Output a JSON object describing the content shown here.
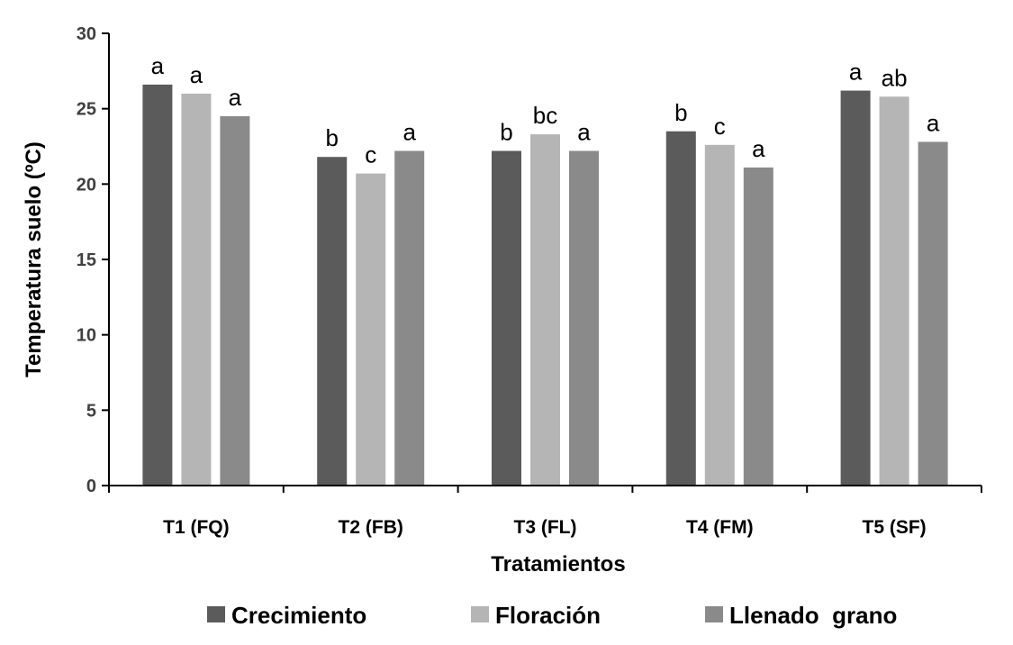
{
  "chart_data": {
    "type": "bar",
    "xlabel": "Tratamientos",
    "ylabel": "Temperatura suelo (ºC)",
    "ylim": [
      0,
      30
    ],
    "yticks": [
      "0",
      "5",
      "10",
      "15",
      "20",
      "25",
      "30"
    ],
    "categories": [
      "T1 (FQ)",
      "T2 (FB)",
      "T3 (FL)",
      "T4 (FM)",
      "T5 (SF)"
    ],
    "series": [
      {
        "name": "Crecimiento",
        "color": "#5b5b5b",
        "values": [
          26.6,
          21.8,
          22.2,
          23.5,
          26.2
        ],
        "letters": [
          "a",
          "b",
          "b",
          "b",
          "a"
        ]
      },
      {
        "name": "Floración",
        "color": "#b5b5b5",
        "values": [
          26.0,
          20.7,
          23.3,
          22.6,
          25.8
        ],
        "letters": [
          "a",
          "c",
          "bc",
          "c",
          "ab"
        ]
      },
      {
        "name": "Llenado  grano",
        "color": "#8a8a8a",
        "values": [
          24.5,
          22.2,
          22.2,
          21.1,
          22.8
        ],
        "letters": [
          "a",
          "a",
          "a",
          "a",
          "a"
        ]
      }
    ],
    "grid": false,
    "legend_position": "bottom"
  }
}
